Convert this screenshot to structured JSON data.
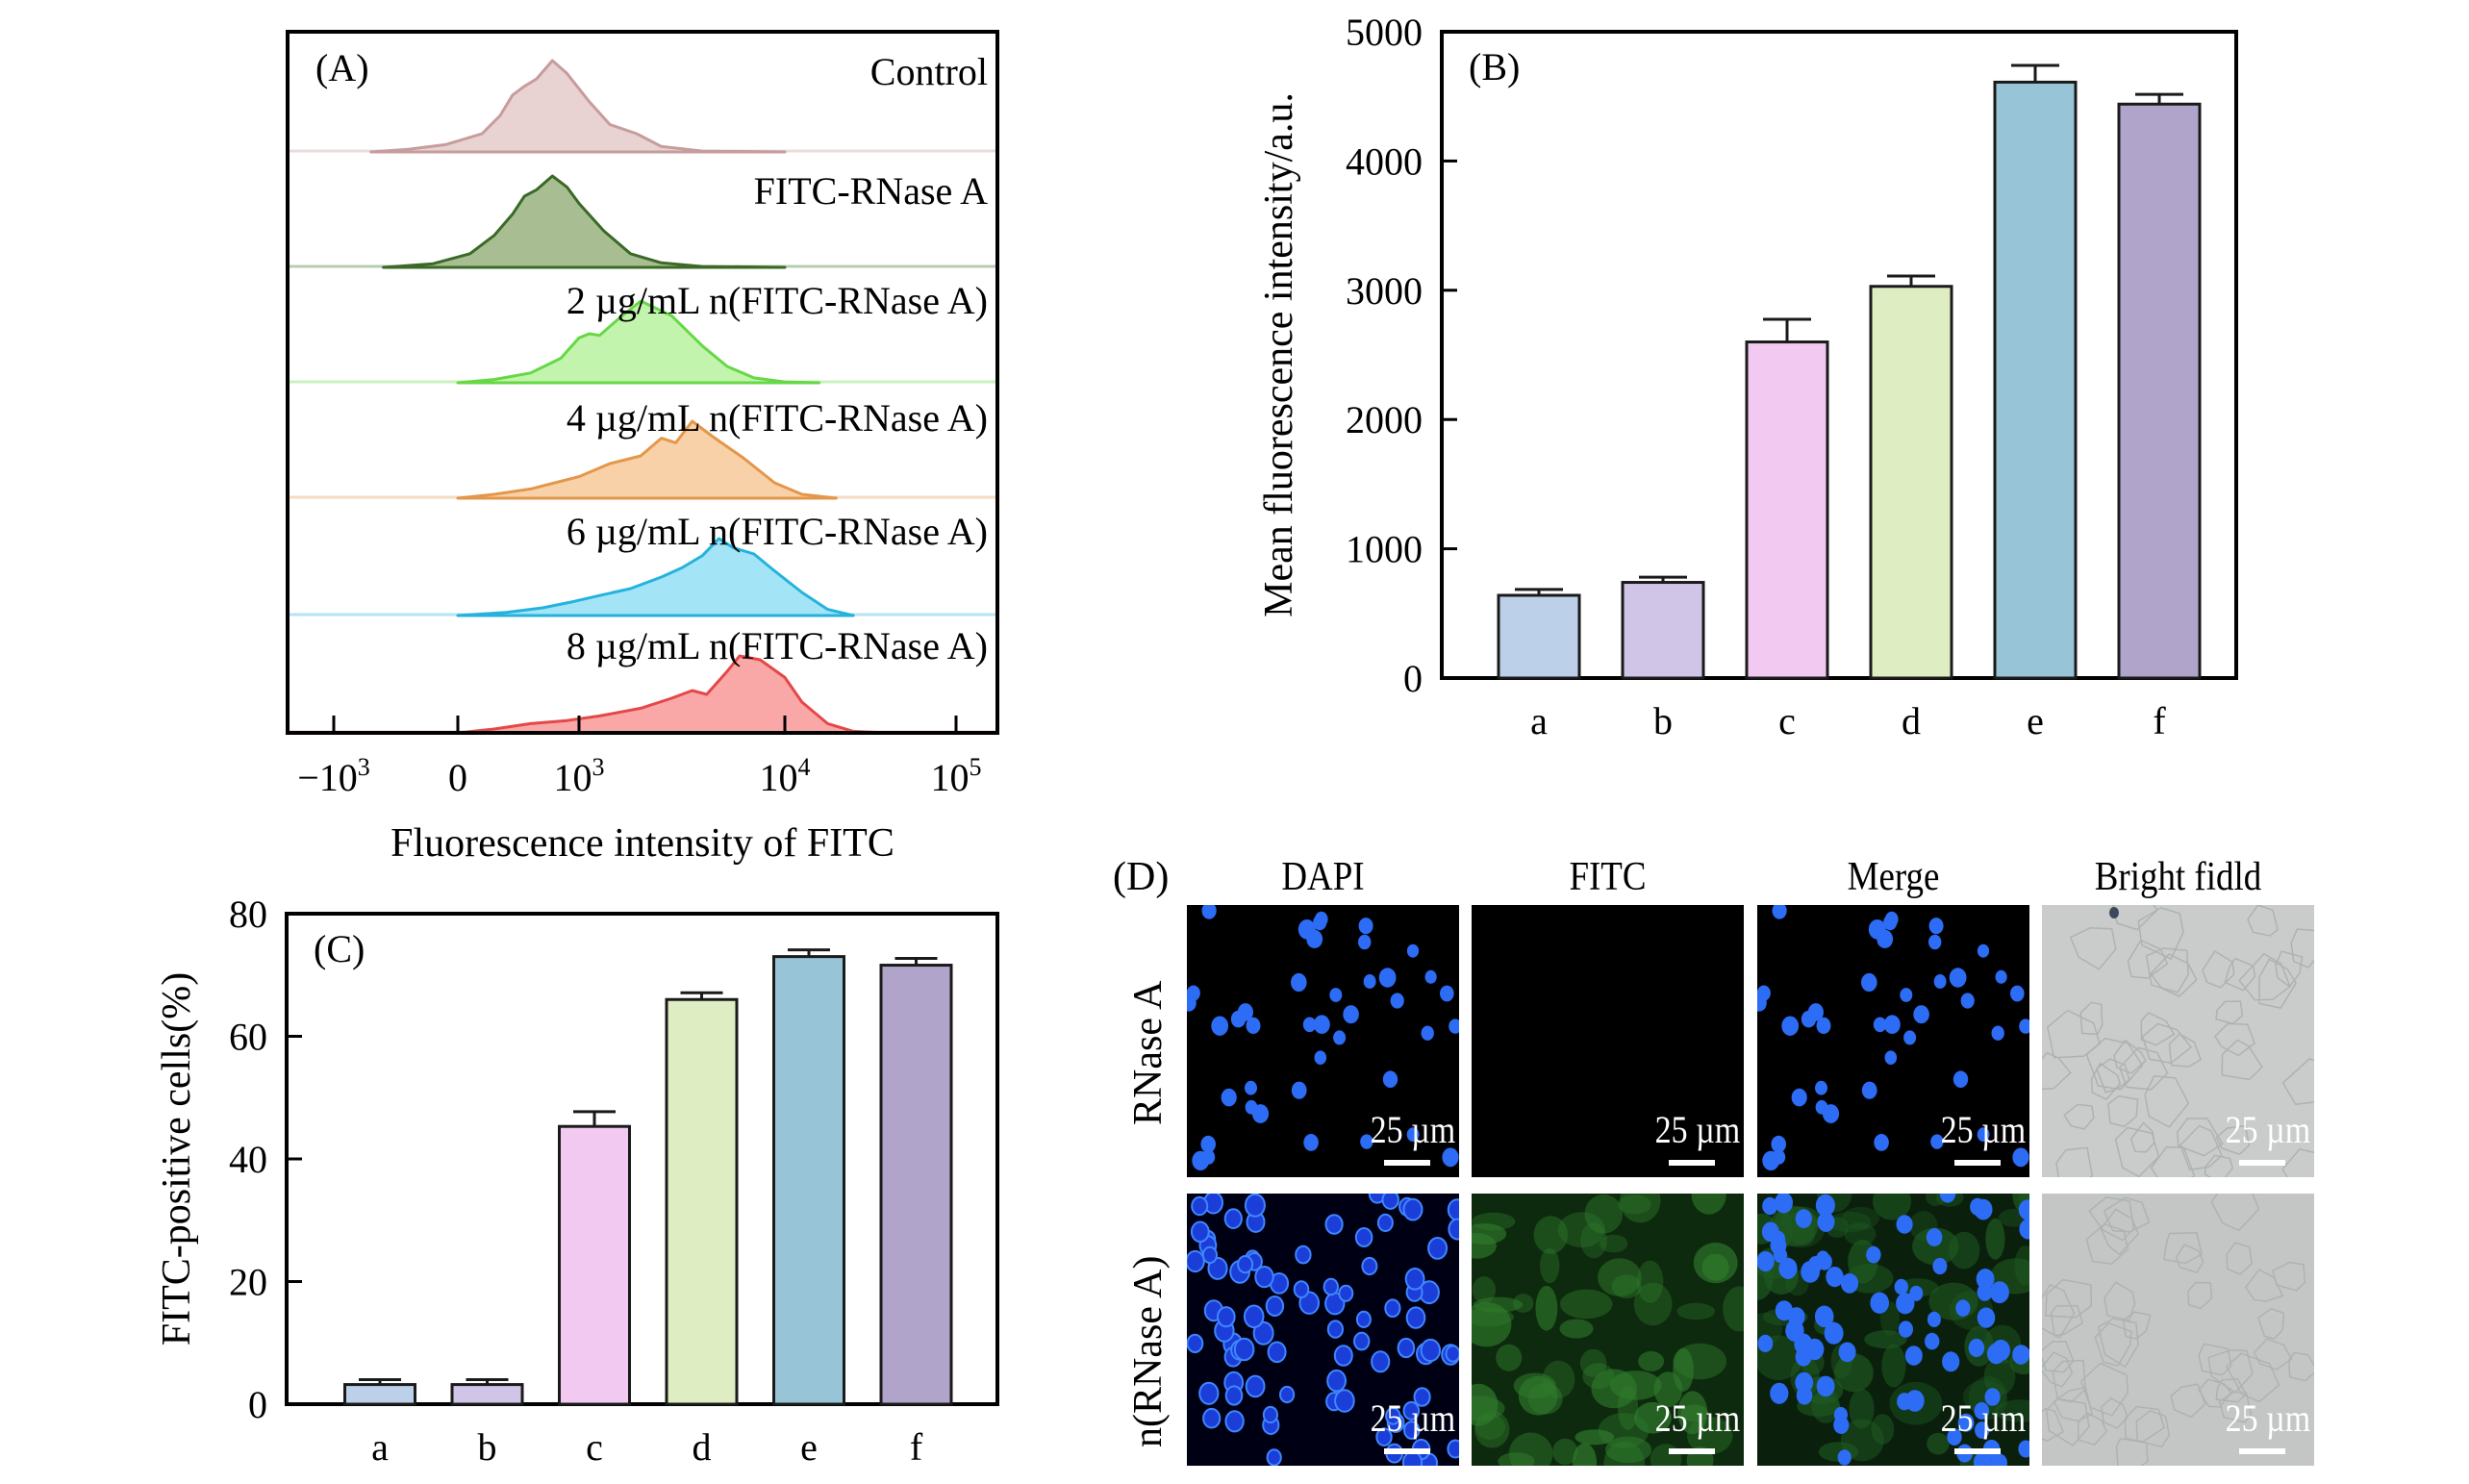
{
  "figure": {
    "panel_a": {
      "tag": "(A)",
      "xlabel": "Fluorescence intensity of FITC",
      "x_ticks": [
        {
          "base": "−10",
          "exp": "3"
        },
        {
          "base": "0",
          "exp": ""
        },
        {
          "base": "10",
          "exp": "3"
        },
        {
          "base": "10",
          "exp": "4"
        },
        {
          "base": "10",
          "exp": "5"
        }
      ]
    },
    "panel_d": {
      "tag": "(D)",
      "columns": [
        "DAPI",
        "FITC",
        "Merge",
        "Bright fidld"
      ],
      "rows": [
        "RNase A",
        "n(RNase A)"
      ],
      "scale_bar_label": "25 µm"
    }
  },
  "chart_data": [
    {
      "id": "A",
      "type": "area",
      "title": "(A)",
      "xlabel": "Fluorescence intensity of FITC",
      "ylabel": "",
      "x_axis": "biexponential; x given as position along tick sequence (0 = -10^3, 1 = 0, 2 = 10^3, 3 = 10^4, 4 = 10^5)",
      "x_tick_labels": [
        "-10^3",
        "0",
        "10^3",
        "10^4",
        "10^5"
      ],
      "y_units": "relative count (normalized to peak = 1)",
      "series": [
        {
          "name": "Control",
          "fill": "#E9D2D2",
          "stroke": "#C79C9C",
          "points": [
            [
              0.3,
              0
            ],
            [
              0.6,
              0.03
            ],
            [
              0.9,
              0.08
            ],
            [
              1.2,
              0.2
            ],
            [
              1.35,
              0.4
            ],
            [
              1.45,
              0.62
            ],
            [
              1.55,
              0.72
            ],
            [
              1.65,
              0.8
            ],
            [
              1.78,
              1.0
            ],
            [
              1.9,
              0.86
            ],
            [
              2.05,
              0.55
            ],
            [
              2.15,
              0.3
            ],
            [
              2.28,
              0.2
            ],
            [
              2.4,
              0.06
            ],
            [
              2.6,
              0.01
            ],
            [
              3.0,
              0
            ]
          ]
        },
        {
          "name": "FITC-RNase A",
          "fill": "#A8BE92",
          "stroke": "#3A6A26",
          "points": [
            [
              0.4,
              0
            ],
            [
              0.8,
              0.04
            ],
            [
              1.1,
              0.15
            ],
            [
              1.3,
              0.35
            ],
            [
              1.45,
              0.58
            ],
            [
              1.55,
              0.78
            ],
            [
              1.65,
              0.85
            ],
            [
              1.78,
              1.0
            ],
            [
              1.9,
              0.88
            ],
            [
              2.0,
              0.7
            ],
            [
              2.12,
              0.4
            ],
            [
              2.25,
              0.15
            ],
            [
              2.4,
              0.05
            ],
            [
              2.6,
              0.01
            ],
            [
              3.0,
              0
            ]
          ]
        },
        {
          "name": "2 µg/mL n(FITC-RNase A)",
          "fill": "#C2F4AD",
          "stroke": "#66D845",
          "points": [
            [
              1.0,
              0
            ],
            [
              1.3,
              0.04
            ],
            [
              1.6,
              0.12
            ],
            [
              1.85,
              0.3
            ],
            [
              2.0,
              0.55
            ],
            [
              2.05,
              0.6
            ],
            [
              2.1,
              0.58
            ],
            [
              2.2,
              0.8
            ],
            [
              2.3,
              1.0
            ],
            [
              2.45,
              0.82
            ],
            [
              2.6,
              0.45
            ],
            [
              2.72,
              0.2
            ],
            [
              2.85,
              0.06
            ],
            [
              3.0,
              0.01
            ],
            [
              3.2,
              0
            ]
          ]
        },
        {
          "name": "4 µg/mL n(FITC-RNase A)",
          "fill": "#F9D1A8",
          "stroke": "#E3974B",
          "points": [
            [
              1.0,
              0
            ],
            [
              1.3,
              0.05
            ],
            [
              1.6,
              0.12
            ],
            [
              1.8,
              0.2
            ],
            [
              2.0,
              0.28
            ],
            [
              2.15,
              0.45
            ],
            [
              2.3,
              0.55
            ],
            [
              2.4,
              0.78
            ],
            [
              2.47,
              0.72
            ],
            [
              2.55,
              1.0
            ],
            [
              2.65,
              0.8
            ],
            [
              2.8,
              0.52
            ],
            [
              2.95,
              0.2
            ],
            [
              3.1,
              0.05
            ],
            [
              3.3,
              0
            ]
          ]
        },
        {
          "name": "6 µg/mL n(FITC-RNase A)",
          "fill": "#A3E5F7",
          "stroke": "#25B2DD",
          "points": [
            [
              1.0,
              0
            ],
            [
              1.4,
              0.04
            ],
            [
              1.7,
              0.1
            ],
            [
              1.95,
              0.18
            ],
            [
              2.1,
              0.26
            ],
            [
              2.25,
              0.35
            ],
            [
              2.4,
              0.5
            ],
            [
              2.5,
              0.62
            ],
            [
              2.6,
              0.78
            ],
            [
              2.68,
              1.0
            ],
            [
              2.75,
              0.88
            ],
            [
              2.85,
              0.8
            ],
            [
              2.95,
              0.58
            ],
            [
              3.1,
              0.3
            ],
            [
              3.25,
              0.08
            ],
            [
              3.4,
              0
            ]
          ]
        },
        {
          "name": "8 µg/mL n(FITC-RNase A)",
          "fill": "#F9A7A7",
          "stroke": "#E44848",
          "points": [
            [
              1.0,
              0
            ],
            [
              1.3,
              0.05
            ],
            [
              1.6,
              0.12
            ],
            [
              1.9,
              0.16
            ],
            [
              2.1,
              0.22
            ],
            [
              2.3,
              0.32
            ],
            [
              2.45,
              0.45
            ],
            [
              2.55,
              0.55
            ],
            [
              2.62,
              0.5
            ],
            [
              2.72,
              0.8
            ],
            [
              2.78,
              1.0
            ],
            [
              2.88,
              0.95
            ],
            [
              3.0,
              0.72
            ],
            [
              3.1,
              0.4
            ],
            [
              3.25,
              0.12
            ],
            [
              3.4,
              0.02
            ],
            [
              3.6,
              0
            ]
          ]
        }
      ]
    },
    {
      "id": "B",
      "type": "bar",
      "title": "(B)",
      "xlabel": "",
      "ylabel": "Mean fluorescence intensity/a.u.",
      "categories": [
        "a",
        "b",
        "c",
        "d",
        "e",
        "f"
      ],
      "values": [
        640,
        740,
        2600,
        3030,
        4610,
        4440
      ],
      "errors": [
        45,
        40,
        175,
        80,
        130,
        75
      ],
      "colors": [
        "#BDD0EA",
        "#D0C5E7",
        "#F2C9F1",
        "#DFEDC3",
        "#97C4D6",
        "#B0A4CA"
      ],
      "ylim": [
        0,
        5000
      ],
      "yticks": [
        0,
        1000,
        2000,
        3000,
        4000,
        5000
      ],
      "grid": false,
      "legend": "none"
    },
    {
      "id": "C",
      "type": "bar",
      "title": "(C)",
      "xlabel": "",
      "ylabel": "FITC-positive cells(%)",
      "categories": [
        "a",
        "b",
        "c",
        "d",
        "e",
        "f"
      ],
      "values": [
        3.2,
        3.2,
        45.3,
        66.0,
        73.0,
        71.6
      ],
      "errors": [
        0.8,
        0.8,
        2.4,
        1.1,
        1.1,
        1.1
      ],
      "colors": [
        "#BDD0EA",
        "#D0C5E7",
        "#F2C9F1",
        "#DFEDC3",
        "#97C4D6",
        "#B0A4CA"
      ],
      "ylim": [
        0,
        80
      ],
      "yticks": [
        0,
        20,
        40,
        60,
        80
      ],
      "grid": false,
      "legend": "none"
    }
  ]
}
